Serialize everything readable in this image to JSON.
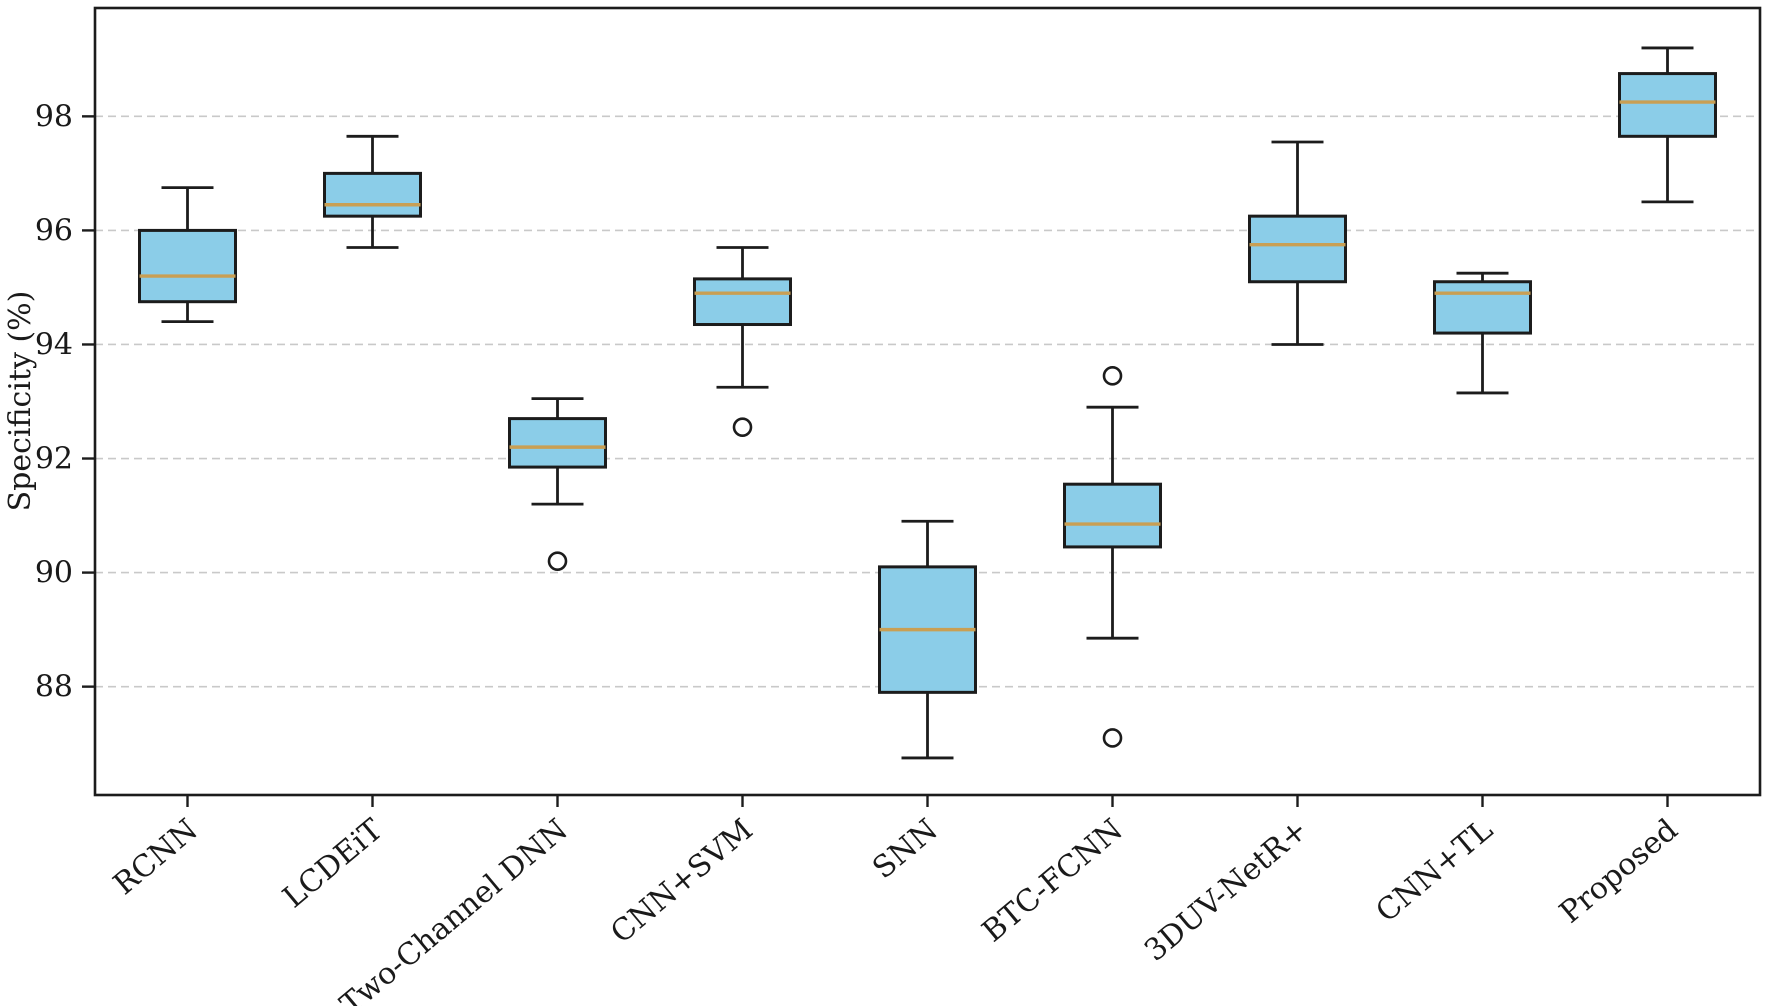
{
  "chart_data": {
    "type": "box",
    "title": "",
    "xlabel": "",
    "ylabel": "Specificity (%)",
    "categories": [
      "RCNN",
      "LCDEiT",
      "Two-Channel DNN",
      "CNN+SVM",
      "SNN",
      "BTC-FCNN",
      "3DUV-NetR+",
      "CNN+TL",
      "Proposed"
    ],
    "stats": [
      {
        "label": "RCNN",
        "whislo": 94.4,
        "q1": 94.75,
        "med": 95.2,
        "q3": 96.0,
        "whishi": 96.75,
        "fliers": []
      },
      {
        "label": "LCDEiT",
        "whislo": 95.7,
        "q1": 96.25,
        "med": 96.45,
        "q3": 97.0,
        "whishi": 97.65,
        "fliers": []
      },
      {
        "label": "Two-Channel DNN",
        "whislo": 91.2,
        "q1": 91.85,
        "med": 92.2,
        "q3": 92.7,
        "whishi": 93.05,
        "fliers": [
          90.2
        ]
      },
      {
        "label": "CNN+SVM",
        "whislo": 93.25,
        "q1": 94.35,
        "med": 94.9,
        "q3": 95.15,
        "whishi": 95.7,
        "fliers": [
          92.55
        ]
      },
      {
        "label": "SNN",
        "whislo": 86.75,
        "q1": 87.9,
        "med": 89.0,
        "q3": 90.1,
        "whishi": 90.9,
        "fliers": []
      },
      {
        "label": "BTC-FCNN",
        "whislo": 88.85,
        "q1": 90.45,
        "med": 90.85,
        "q3": 91.55,
        "whishi": 92.9,
        "fliers": [
          93.45,
          87.1
        ]
      },
      {
        "label": "3DUV-NetR+",
        "whislo": 94.0,
        "q1": 95.1,
        "med": 95.75,
        "q3": 96.25,
        "whishi": 97.55,
        "fliers": []
      },
      {
        "label": "CNN+TL",
        "whislo": 93.15,
        "q1": 94.2,
        "med": 94.9,
        "q3": 95.1,
        "whishi": 95.25,
        "fliers": []
      },
      {
        "label": "Proposed",
        "whislo": 96.5,
        "q1": 97.65,
        "med": 98.25,
        "q3": 98.75,
        "whishi": 99.2,
        "fliers": []
      }
    ],
    "yticks": [
      88,
      90,
      92,
      94,
      96,
      98
    ],
    "ylim": [
      86.1,
      99.9
    ],
    "grid": {
      "axis": "y",
      "style": "dashed",
      "dash": "8 5"
    },
    "legend": "none",
    "colors": {
      "box_fill": "#8bcde8",
      "box_edge": "#1c1c1c",
      "median": "#c99f53",
      "whisker": "#1c1c1c",
      "flier_edge": "#1c1c1c",
      "flier_fill": "#ffffff",
      "grid": "#c9c9c9",
      "spine": "#1c1c1c",
      "text": "#1a1a1a",
      "background": "#ffffff"
    }
  }
}
